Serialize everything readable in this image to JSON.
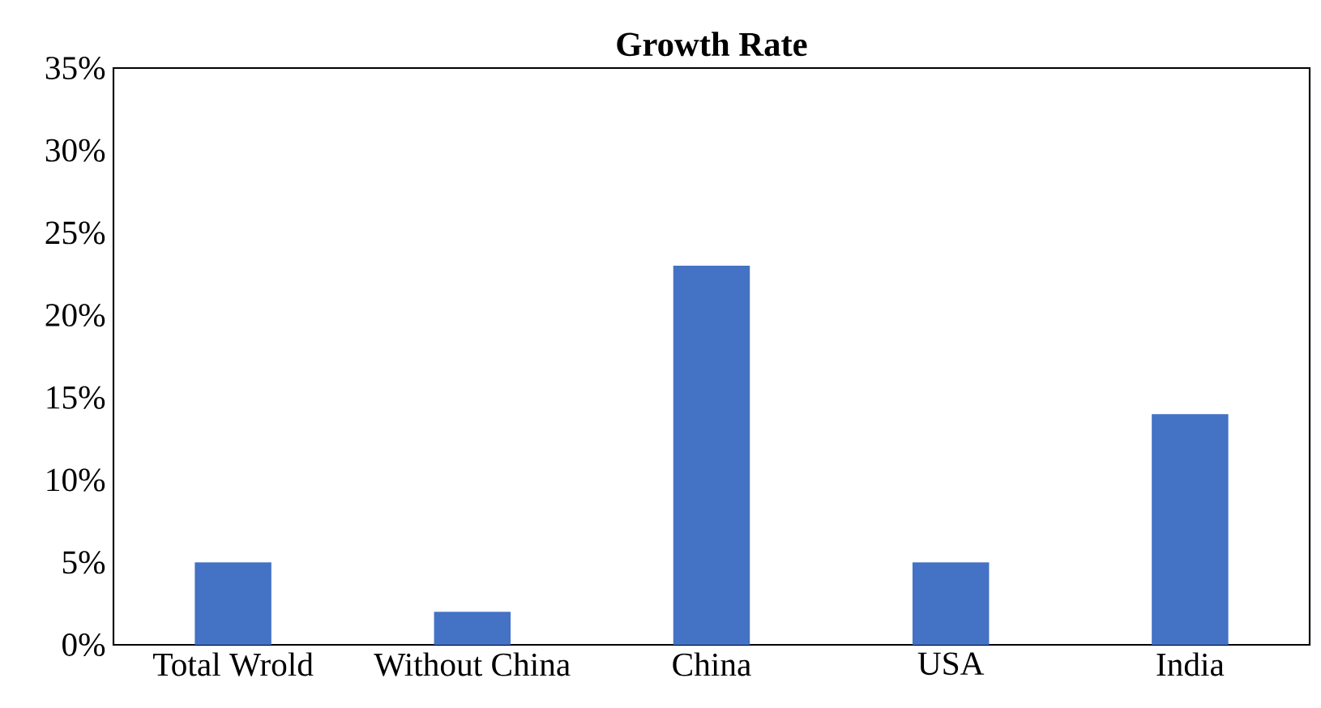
{
  "chart_data": {
    "type": "bar",
    "title": "Growth Rate",
    "categories": [
      "Total Wrold",
      "Without China",
      "China",
      "USA",
      "India"
    ],
    "values": [
      5,
      2,
      23,
      5,
      14
    ],
    "color": "#4472c4",
    "ylim": [
      0,
      35
    ],
    "yticks": [
      {
        "value": 0,
        "label": "0%"
      },
      {
        "value": 5,
        "label": "5%"
      },
      {
        "value": 10,
        "label": "10%"
      },
      {
        "value": 15,
        "label": "15%"
      },
      {
        "value": 20,
        "label": "20%"
      },
      {
        "value": 25,
        "label": "25%"
      },
      {
        "value": 30,
        "label": "30%"
      },
      {
        "value": 35,
        "label": "35%"
      }
    ],
    "grid": false
  }
}
